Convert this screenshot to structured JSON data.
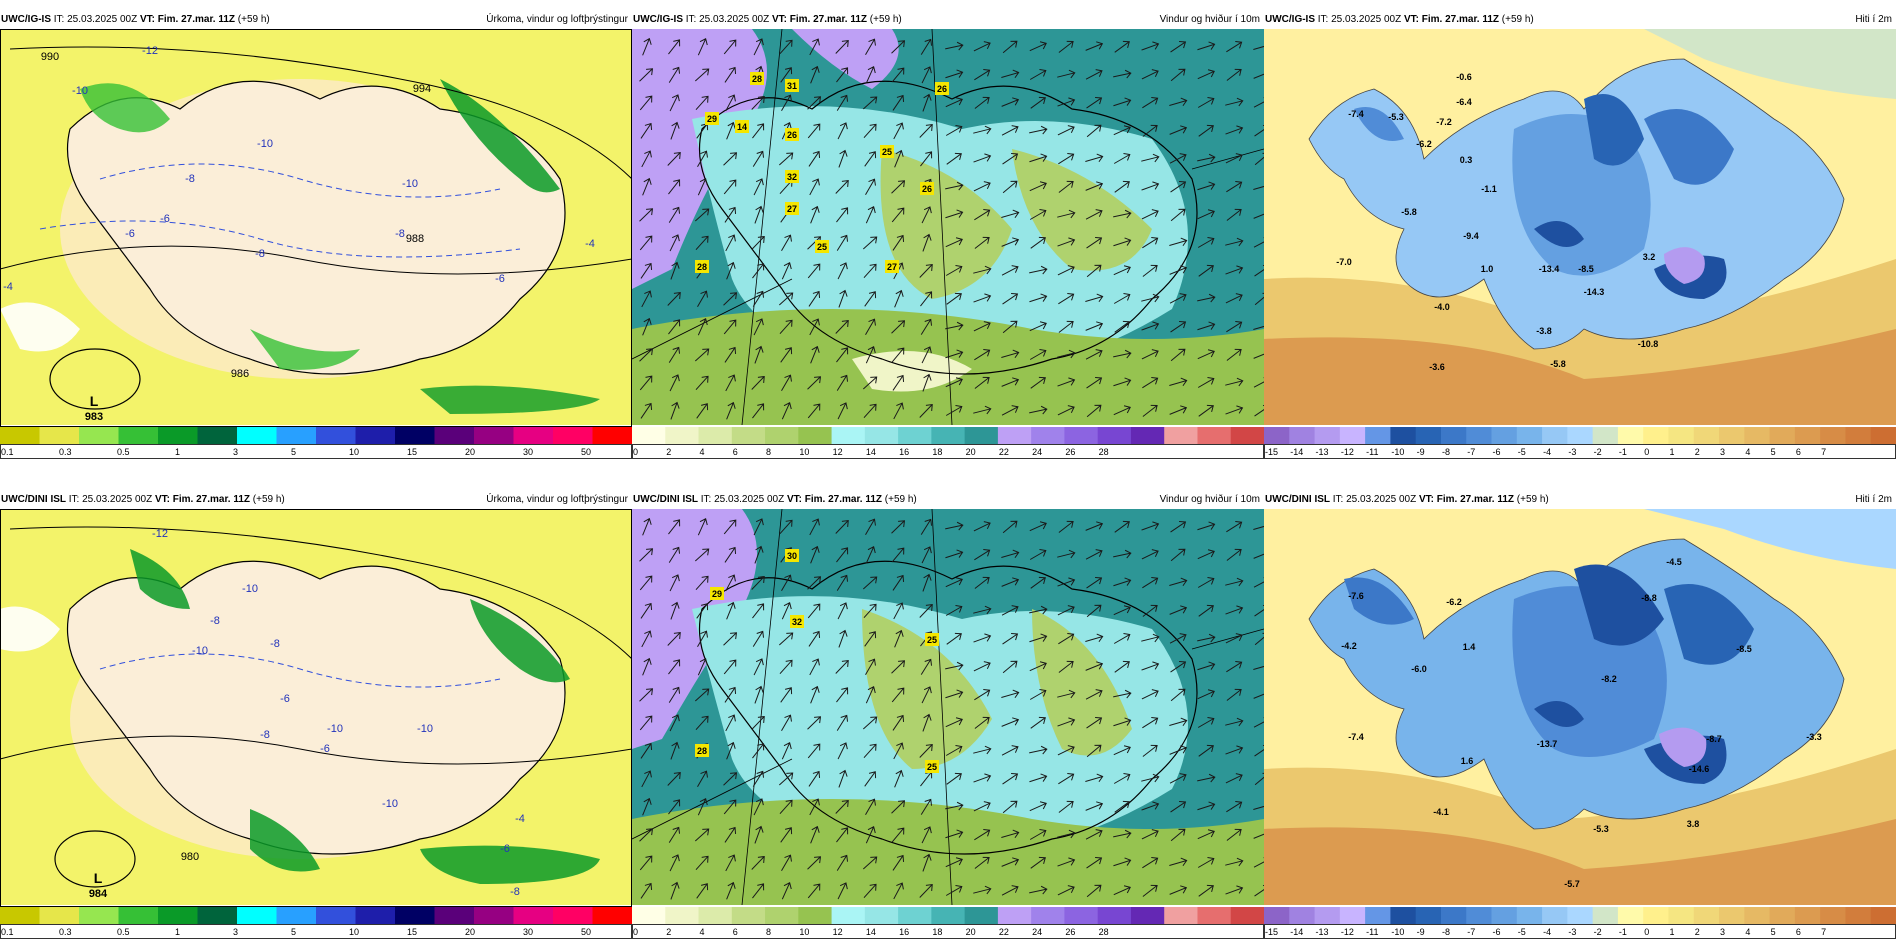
{
  "panels": [
    {
      "id": "igis-precip",
      "header": {
        "model": "UWC/IG-IS",
        "it_label": "IT:",
        "it": "25.03.2025 00Z",
        "vt_label": "VT:",
        "vt": "Fim. 27.mar. 11Z",
        "lead": "(+59 h)",
        "product": "Úrkoma, vindur og loftþrýstingur"
      },
      "labels": [
        {
          "text": "-12"
        },
        {
          "text": "990"
        },
        {
          "text": "-10"
        },
        {
          "text": "-10"
        },
        {
          "text": "-8"
        },
        {
          "text": "-8"
        },
        {
          "text": "-6"
        },
        {
          "text": "-6"
        },
        {
          "text": "-10"
        },
        {
          "text": "-4"
        },
        {
          "text": "-8"
        },
        {
          "text": "-6"
        },
        {
          "text": "994"
        },
        {
          "text": "988"
        },
        {
          "text": "986"
        },
        {
          "text": "-4"
        }
      ],
      "low": {
        "letter": "L",
        "value": "983"
      }
    },
    {
      "id": "igis-wind",
      "header": {
        "model": "UWC/IG-IS",
        "it_label": "IT:",
        "it": "25.03.2025 00Z",
        "vt_label": "VT:",
        "vt": "Fim. 27.mar. 11Z",
        "lead": "(+59 h)",
        "product": "Vindur og hviður í 10m"
      },
      "labels": [
        {
          "text": "28"
        },
        {
          "text": "31"
        },
        {
          "text": "29"
        },
        {
          "text": "14"
        },
        {
          "text": "26"
        },
        {
          "text": "25"
        },
        {
          "text": "26"
        },
        {
          "text": "32"
        },
        {
          "text": "27"
        },
        {
          "text": "26"
        },
        {
          "text": "25"
        },
        {
          "text": "27"
        },
        {
          "text": "28"
        }
      ]
    },
    {
      "id": "igis-temp",
      "header": {
        "model": "UWC/IG-IS",
        "it_label": "IT:",
        "it": "25.03.2025 00Z",
        "vt_label": "VT:",
        "vt": "Fim. 27.mar. 11Z",
        "lead": "(+59 h)",
        "product": "Hiti í 2m"
      },
      "labels": [
        {
          "text": "-0.6"
        },
        {
          "text": "-7.4"
        },
        {
          "text": "-5.3"
        },
        {
          "text": "-6.4"
        },
        {
          "text": "-7.2"
        },
        {
          "text": "-6.2"
        },
        {
          "text": "0.3"
        },
        {
          "text": "-1.1"
        },
        {
          "text": "-5.8"
        },
        {
          "text": "-9.4"
        },
        {
          "text": "-7.0"
        },
        {
          "text": "1.0"
        },
        {
          "text": "-13.4"
        },
        {
          "text": "-8.5"
        },
        {
          "text": "3.2"
        },
        {
          "text": "-14.3"
        },
        {
          "text": "-4.0"
        },
        {
          "text": "-3.8"
        },
        {
          "text": "-10.8"
        },
        {
          "text": "-3.6"
        },
        {
          "text": "-5.8"
        }
      ]
    },
    {
      "id": "dini-precip",
      "header": {
        "model": "UWC/DINI ISL",
        "it_label": "IT:",
        "it": "25.03.2025 00Z",
        "vt_label": "VT:",
        "vt": "Fim. 27.mar. 11Z",
        "lead": "(+59 h)",
        "product": "Úrkoma, vindur og loftþrýstingur"
      },
      "labels": [
        {
          "text": "-12"
        },
        {
          "text": "-10"
        },
        {
          "text": "-8"
        },
        {
          "text": "-10"
        },
        {
          "text": "-8"
        },
        {
          "text": "-6"
        },
        {
          "text": "-10"
        },
        {
          "text": "-10"
        },
        {
          "text": "-8"
        },
        {
          "text": "-6"
        },
        {
          "text": "-10"
        },
        {
          "text": "-4"
        },
        {
          "text": "-8"
        },
        {
          "text": "-6"
        },
        {
          "text": "980"
        }
      ],
      "low": {
        "letter": "L",
        "value": "984"
      }
    },
    {
      "id": "dini-wind",
      "header": {
        "model": "UWC/DINI ISL",
        "it_label": "IT:",
        "it": "25.03.2025 00Z",
        "vt_label": "VT:",
        "vt": "Fim. 27.mar. 11Z",
        "lead": "(+59 h)",
        "product": "Vindur og hviður í 10m"
      },
      "labels": [
        {
          "text": "30"
        },
        {
          "text": "29"
        },
        {
          "text": "32"
        },
        {
          "text": "25"
        },
        {
          "text": "28"
        },
        {
          "text": "25"
        }
      ]
    },
    {
      "id": "dini-temp",
      "header": {
        "model": "UWC/DINI ISL",
        "it_label": "IT:",
        "it": "25.03.2025 00Z",
        "vt_label": "VT:",
        "vt": "Fim. 27.mar. 11Z",
        "lead": "(+59 h)",
        "product": "Hiti í 2m"
      },
      "labels": [
        {
          "text": "-4.5"
        },
        {
          "text": "-7.6"
        },
        {
          "text": "-8.8"
        },
        {
          "text": "-6.2"
        },
        {
          "text": "-8.5"
        },
        {
          "text": "-4.2"
        },
        {
          "text": "1.4"
        },
        {
          "text": "-6.0"
        },
        {
          "text": "-8.2"
        },
        {
          "text": "-7.4"
        },
        {
          "text": "-13.7"
        },
        {
          "text": "-8.7"
        },
        {
          "text": "-3.3"
        },
        {
          "text": "1.6"
        },
        {
          "text": "-14.6"
        },
        {
          "text": "-4.1"
        },
        {
          "text": "-5.3"
        },
        {
          "text": "3.8"
        },
        {
          "text": "-5.7"
        }
      ]
    }
  ],
  "colorbars": {
    "precip": {
      "colors": [
        "#c8c800",
        "#e6e64a",
        "#96e650",
        "#36c036",
        "#0a9a28",
        "#00643c",
        "#00ffff",
        "#28a0ff",
        "#3250dc",
        "#1e1eaa",
        "#000064",
        "#5a007a",
        "#960082",
        "#e60082",
        "#ff0064",
        "#ff0000"
      ],
      "ticks": [
        "0.1",
        "0.3",
        "0.5",
        "1",
        "3",
        "5",
        "10",
        "15",
        "20",
        "30",
        "50"
      ]
    },
    "wind": {
      "colors": [
        "#ffffe6",
        "#f0f5c8",
        "#dcebaa",
        "#c3dc87",
        "#afd26e",
        "#96c350",
        "#aaf5f5",
        "#96e6e6",
        "#6ed2d2",
        "#46b4b4",
        "#2d9696",
        "#bea0f5",
        "#a082eb",
        "#8c64e1",
        "#7846d2",
        "#6428b4",
        "#f0a0a0",
        "#e66e6e",
        "#d24646"
      ],
      "ticks": [
        "0",
        "2",
        "4",
        "6",
        "8",
        "10",
        "12",
        "14",
        "16",
        "18",
        "20",
        "22",
        "24",
        "26",
        "28"
      ]
    },
    "temp": {
      "colors": [
        "#8c64c8",
        "#a082e1",
        "#b49bf0",
        "#c8b4ff",
        "#6496e6",
        "#1e50a0",
        "#2864b4",
        "#3c78c8",
        "#508cd7",
        "#64a0e1",
        "#78b4eb",
        "#96c8f5",
        "#aad7ff",
        "#d2e6c8",
        "#fffaaa",
        "#fff08c",
        "#f5e682",
        "#f0d778",
        "#ebc86e",
        "#e6b964",
        "#e1aa5a",
        "#dc9b50",
        "#d78c46",
        "#d27d3c",
        "#cd6e32"
      ],
      "ticks": [
        "-15",
        "-14",
        "-13",
        "-12",
        "-11",
        "-10",
        "-9",
        "-8",
        "-7",
        "-6",
        "-5",
        "-4",
        "-3",
        "-2",
        "-1",
        "0",
        "1",
        "2",
        "3",
        "4",
        "5",
        "6",
        "7"
      ]
    }
  }
}
